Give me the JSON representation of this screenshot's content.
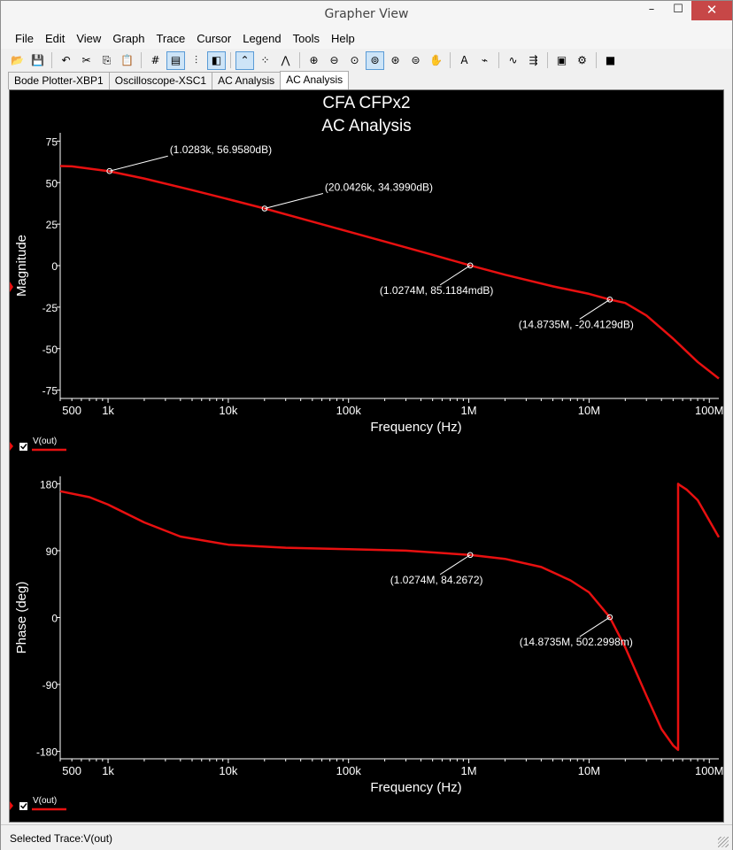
{
  "window": {
    "title": "Grapher View",
    "min": "–",
    "max": "☐",
    "close": "✕"
  },
  "menu": [
    "File",
    "Edit",
    "View",
    "Graph",
    "Trace",
    "Cursor",
    "Legend",
    "Tools",
    "Help"
  ],
  "toolbar_icons": [
    {
      "name": "open-icon",
      "glyph": "📂"
    },
    {
      "name": "save-icon",
      "glyph": "💾"
    },
    {
      "sep": true
    },
    {
      "name": "undo-icon",
      "glyph": "↶"
    },
    {
      "name": "cut-icon",
      "glyph": "✂"
    },
    {
      "name": "copy-icon",
      "glyph": "⎘"
    },
    {
      "name": "paste-icon",
      "glyph": "📋"
    },
    {
      "sep": true
    },
    {
      "name": "grid-icon",
      "glyph": "#"
    },
    {
      "name": "legend-icon",
      "glyph": "▤",
      "active": true
    },
    {
      "name": "cursors-icon",
      "glyph": "⫶"
    },
    {
      "name": "reverse-colors-icon",
      "glyph": "◧",
      "active": true
    },
    {
      "sep": true
    },
    {
      "name": "lines-icon",
      "glyph": "⌃",
      "active": true
    },
    {
      "name": "points-icon",
      "glyph": "⁘"
    },
    {
      "name": "lines-points-icon",
      "glyph": "⋀"
    },
    {
      "sep": true
    },
    {
      "name": "zoom-in-icon",
      "glyph": "⊕"
    },
    {
      "name": "zoom-out-icon",
      "glyph": "⊖"
    },
    {
      "name": "zoom-reset-icon",
      "glyph": "⊙"
    },
    {
      "name": "zoom-area-icon",
      "glyph": "⊚",
      "active": true
    },
    {
      "name": "zoom-x-icon",
      "glyph": "⊛"
    },
    {
      "name": "zoom-y-icon",
      "glyph": "⊜"
    },
    {
      "name": "pan-icon",
      "glyph": "✋"
    },
    {
      "sep": true
    },
    {
      "name": "text-icon",
      "glyph": "A"
    },
    {
      "name": "label-icon",
      "glyph": "⌁"
    },
    {
      "sep": true
    },
    {
      "name": "trace-icon",
      "glyph": "∿"
    },
    {
      "name": "export-icon",
      "glyph": "⇶"
    },
    {
      "sep": true
    },
    {
      "name": "copy-graph-icon",
      "glyph": "▣"
    },
    {
      "name": "properties-icon",
      "glyph": "⚙"
    },
    {
      "sep": true
    },
    {
      "name": "stop-icon",
      "glyph": "■"
    }
  ],
  "tabs": [
    {
      "label": "Bode Plotter-XBP1",
      "selected": false
    },
    {
      "label": "Oscilloscope-XSC1",
      "selected": false
    },
    {
      "label": "AC Analysis",
      "selected": false
    },
    {
      "label": "AC Analysis",
      "selected": true
    }
  ],
  "graph": {
    "title_line1": "CFA CFPx2",
    "title_line2": "AC Analysis",
    "trace_color": "#e81010",
    "legend_label": "V(out)"
  },
  "chart_data": [
    {
      "type": "line",
      "title": "CFA CFPx2 AC Analysis",
      "xlabel": "Frequency (Hz)",
      "ylabel": "Magnitude",
      "x_scale": "log",
      "xlim": [
        400,
        120000000
      ],
      "ylim": [
        -80,
        80
      ],
      "x_ticks": [
        {
          "v": 500,
          "label": "500"
        },
        {
          "v": 1000,
          "label": "1k"
        },
        {
          "v": 10000,
          "label": "10k"
        },
        {
          "v": 100000,
          "label": "100k"
        },
        {
          "v": 1000000,
          "label": "1M"
        },
        {
          "v": 10000000,
          "label": "10M"
        },
        {
          "v": 100000000,
          "label": "100M"
        }
      ],
      "y_ticks": [
        {
          "v": 75,
          "label": "75"
        },
        {
          "v": 50,
          "label": "50"
        },
        {
          "v": 25,
          "label": "25"
        },
        {
          "v": 0,
          "label": "0"
        },
        {
          "v": -25,
          "label": "-25"
        },
        {
          "v": -50,
          "label": "-50"
        },
        {
          "v": -75,
          "label": "-75"
        }
      ],
      "legend_placement": "bottom-left",
      "series": [
        {
          "name": "V(out)",
          "x": [
            400,
            500,
            1000,
            2000,
            5000,
            10000,
            20042.6,
            50000,
            100000,
            200000,
            500000,
            1027400,
            2000000,
            5000000,
            10000000,
            14873500,
            20000000,
            30000000,
            50000000,
            80000000,
            120000000
          ],
          "y": [
            60.0,
            59.8,
            56.96,
            52.5,
            45.5,
            40.0,
            34.4,
            26.5,
            20.5,
            14.5,
            6.5,
            0.085,
            -5.5,
            -12.5,
            -17.0,
            -20.41,
            -22.5,
            -30.0,
            -44.0,
            -58.0,
            -68.0
          ]
        }
      ],
      "annotations": [
        {
          "x": 1028.3,
          "y": 56.958,
          "text": "(1.0283k, 56.9580dB)",
          "pos": "above-right"
        },
        {
          "x": 20042.6,
          "y": 34.399,
          "text": "(20.0426k, 34.3990dB)",
          "pos": "above-right"
        },
        {
          "x": 1027400,
          "y": 0.0852,
          "text": "(1.0274M, 85.1184mdB)",
          "pos": "below-left"
        },
        {
          "x": 14873500,
          "y": -20.4129,
          "text": "(14.8735M, -20.4129dB)",
          "pos": "below-left"
        }
      ]
    },
    {
      "type": "line",
      "xlabel": "Frequency (Hz)",
      "ylabel": "Phase (deg)",
      "x_scale": "log",
      "xlim": [
        400,
        120000000
      ],
      "ylim": [
        -190,
        190
      ],
      "x_ticks": [
        {
          "v": 500,
          "label": "500"
        },
        {
          "v": 1000,
          "label": "1k"
        },
        {
          "v": 10000,
          "label": "10k"
        },
        {
          "v": 100000,
          "label": "100k"
        },
        {
          "v": 1000000,
          "label": "1M"
        },
        {
          "v": 10000000,
          "label": "10M"
        },
        {
          "v": 100000000,
          "label": "100M"
        }
      ],
      "y_ticks": [
        {
          "v": 180,
          "label": "180"
        },
        {
          "v": 90,
          "label": "90"
        },
        {
          "v": 0,
          "label": "0"
        },
        {
          "v": -90,
          "label": "-90"
        },
        {
          "v": -180,
          "label": "-180"
        }
      ],
      "legend_placement": "bottom-left",
      "series": [
        {
          "name": "V(out)",
          "x": [
            400,
            700,
            1000,
            2000,
            4000,
            10000,
            30000,
            100000,
            300000,
            1027400,
            2000000,
            4000000,
            7000000,
            10000000,
            14873500,
            20000000,
            30000000,
            40000000,
            50000000,
            55000000,
            55000000,
            57000000,
            65000000,
            80000000,
            120000000
          ],
          "y": [
            170,
            162,
            152,
            128,
            109,
            98,
            94,
            92,
            90,
            84.27,
            79,
            68,
            50,
            34,
            0.5,
            -40,
            -105,
            -150,
            -172,
            -178,
            180,
            178,
            172,
            158,
            108
          ]
        }
      ],
      "annotations": [
        {
          "x": 1027400,
          "y": 84.2672,
          "text": "(1.0274M, 84.2672)",
          "pos": "below-left"
        },
        {
          "x": 14873500,
          "y": 0.5023,
          "text": "(14.8735M, 502.2998m)",
          "pos": "below-left"
        }
      ]
    }
  ],
  "status": "Selected Trace:V(out)"
}
